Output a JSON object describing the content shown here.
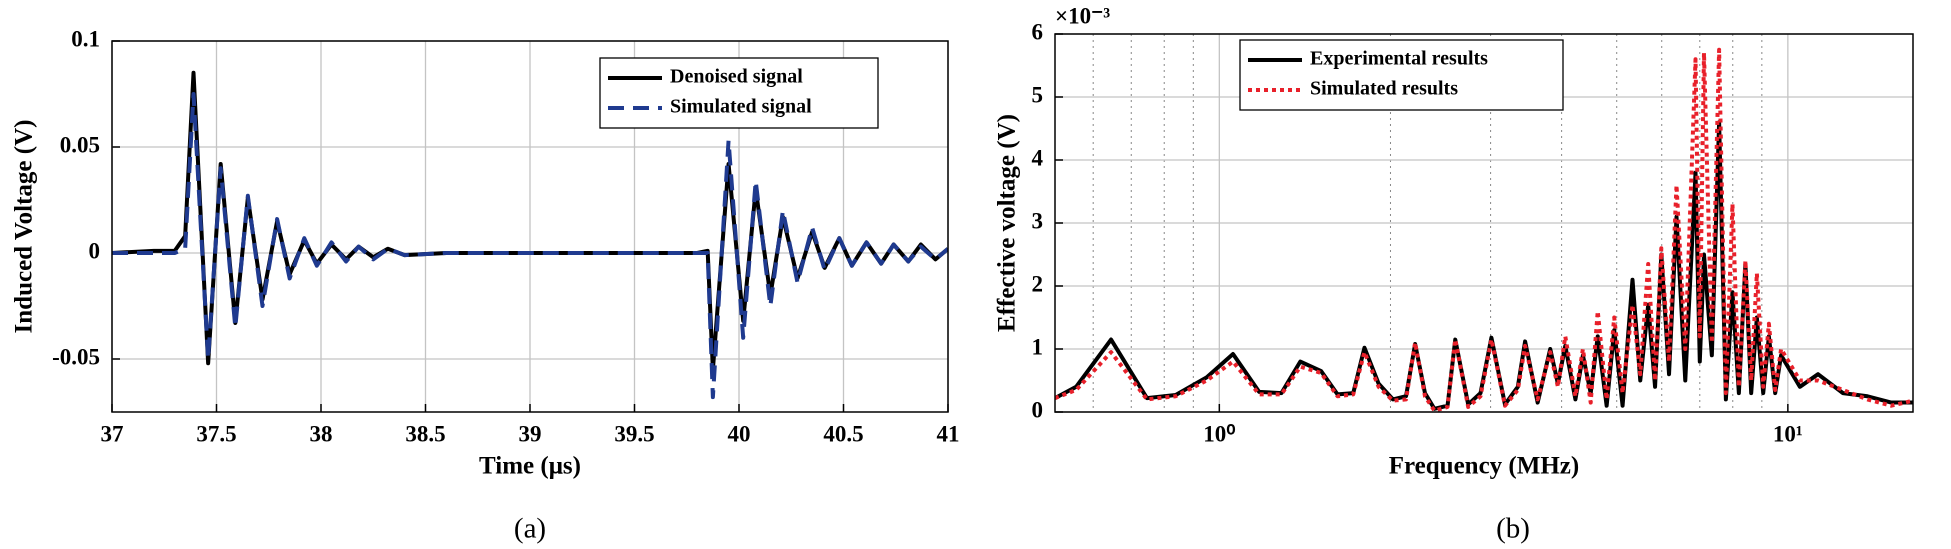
{
  "chart_data": [
    {
      "type": "line",
      "xlabel": "Time (μs)",
      "ylabel": "Induced Voltage (V)",
      "caption": "(a)",
      "xlim": [
        37,
        41
      ],
      "xticks": [
        37,
        37.5,
        38,
        38.5,
        39,
        39.5,
        40,
        40.5,
        41
      ],
      "ylim": [
        -0.075,
        0.1
      ],
      "yticks": [
        -0.05,
        0,
        0.05,
        0.1
      ],
      "grid": true,
      "legend": "top-right",
      "x": [
        37,
        37.2,
        37.3,
        37.35,
        37.39,
        37.46,
        37.52,
        37.59,
        37.65,
        37.72,
        37.79,
        37.85,
        37.92,
        37.98,
        38.05,
        38.12,
        38.18,
        38.25,
        38.32,
        38.4,
        38.6,
        38.8,
        39.0,
        39.2,
        39.4,
        39.6,
        39.8,
        39.85,
        39.875,
        39.95,
        40.02,
        40.08,
        40.15,
        40.21,
        40.28,
        40.35,
        40.41,
        40.48,
        40.54,
        40.61,
        40.68,
        40.74,
        40.81,
        40.87,
        40.94,
        41.0
      ],
      "series": [
        {
          "name": "Denoised signal",
          "color": "#000000",
          "linestyle": "solid",
          "values": [
            0,
            0.001,
            0.001,
            0.008,
            0.085,
            -0.052,
            0.042,
            -0.033,
            0.026,
            -0.022,
            0.015,
            -0.01,
            0.006,
            -0.005,
            0.004,
            -0.003,
            0.003,
            -0.002,
            0.002,
            -0.001,
            0,
            0,
            0,
            0,
            0,
            0,
            0,
            0.001,
            -0.055,
            0.042,
            -0.032,
            0.03,
            -0.02,
            0.017,
            -0.012,
            0.01,
            -0.007,
            0.007,
            -0.006,
            0.005,
            -0.005,
            0.004,
            -0.004,
            0.004,
            -0.003,
            0.002
          ]
        },
        {
          "name": "Simulated signal",
          "color": "#1f3a8f",
          "linestyle": "dashed",
          "values": [
            0,
            0,
            0,
            0.002,
            0.075,
            -0.05,
            0.04,
            -0.035,
            0.027,
            -0.025,
            0.016,
            -0.012,
            0.007,
            -0.006,
            0.005,
            -0.004,
            0.003,
            -0.003,
            0.002,
            -0.001,
            0,
            0,
            0,
            0,
            0,
            0,
            0,
            0,
            -0.068,
            0.053,
            -0.04,
            0.034,
            -0.025,
            0.02,
            -0.014,
            0.012,
            -0.008,
            0.007,
            -0.006,
            0.005,
            -0.005,
            0.004,
            -0.004,
            0.003,
            -0.003,
            0.002
          ]
        }
      ]
    },
    {
      "type": "line",
      "xlabel": "Frequency (MHz)",
      "ylabel": "Effective voltage (V)",
      "caption": "(b)",
      "y_multiplier": "×10⁻³",
      "xscale": "log",
      "xlim": [
        0.514,
        16.6
      ],
      "xticks": [
        {
          "value": 1,
          "label": "10⁰"
        },
        {
          "value": 10,
          "label": "10¹"
        }
      ],
      "xminorticks": [
        0.6,
        0.7,
        0.8,
        0.9,
        2,
        3,
        4,
        5,
        6,
        7,
        8,
        9
      ],
      "ylim": [
        0,
        6
      ],
      "yticks": [
        0,
        1,
        2,
        3,
        4,
        5,
        6
      ],
      "grid": true,
      "legend": "top-left",
      "x": [
        0.514,
        0.56,
        0.645,
        0.746,
        0.838,
        0.95,
        1.057,
        1.175,
        1.286,
        1.388,
        1.51,
        1.614,
        1.72,
        1.8,
        1.906,
        2.02,
        2.13,
        2.21,
        2.3,
        2.39,
        2.52,
        2.6,
        2.74,
        2.88,
        3.01,
        3.18,
        3.35,
        3.45,
        3.63,
        3.82,
        3.94,
        4.06,
        4.23,
        4.36,
        4.5,
        4.63,
        4.8,
        4.95,
        5.12,
        5.33,
        5.5,
        5.68,
        5.84,
        5.99,
        6.18,
        6.37,
        6.6,
        6.88,
        7.0,
        7.12,
        7.35,
        7.57,
        7.78,
        7.99,
        8.2,
        8.42,
        8.62,
        8.82,
        9.05,
        9.26,
        9.5,
        9.73,
        10.5,
        11.3,
        12.5,
        13.8,
        15.2,
        16.6
      ],
      "series": [
        {
          "name": "Experimental results",
          "color": "#000000",
          "linestyle": "solid",
          "values": [
            0.22,
            0.4,
            1.15,
            0.22,
            0.27,
            0.55,
            0.92,
            0.32,
            0.3,
            0.8,
            0.65,
            0.28,
            0.3,
            1.02,
            0.45,
            0.2,
            0.25,
            1.08,
            0.3,
            0.05,
            0.1,
            1.15,
            0.12,
            0.3,
            1.18,
            0.12,
            0.4,
            1.12,
            0.15,
            1.0,
            0.45,
            1.05,
            0.2,
            0.9,
            0.3,
            1.2,
            0.1,
            1.3,
            0.1,
            2.1,
            0.5,
            1.7,
            0.4,
            2.5,
            0.6,
            3.1,
            0.5,
            3.8,
            0.8,
            2.5,
            0.9,
            4.6,
            0.2,
            1.9,
            0.3,
            2.35,
            0.3,
            1.5,
            0.3,
            1.2,
            0.3,
            0.9,
            0.4,
            0.6,
            0.3,
            0.25,
            0.15,
            0.15
          ]
        },
        {
          "name": "Simulated results",
          "color": "#e8202a",
          "linestyle": "dotted",
          "values": [
            0.22,
            0.35,
            0.95,
            0.2,
            0.25,
            0.5,
            0.8,
            0.28,
            0.28,
            0.72,
            0.62,
            0.25,
            0.28,
            0.95,
            0.4,
            0.18,
            0.2,
            1.1,
            0.25,
            0.02,
            0.08,
            1.15,
            0.08,
            0.25,
            1.15,
            0.1,
            0.35,
            1.05,
            0.2,
            0.95,
            0.4,
            1.2,
            0.25,
            1.0,
            0.15,
            1.6,
            0.2,
            1.5,
            0.3,
            1.7,
            0.6,
            2.35,
            0.5,
            2.6,
            0.8,
            3.6,
            1.0,
            5.6,
            1.2,
            5.7,
            1.1,
            5.75,
            0.3,
            3.3,
            0.4,
            2.4,
            0.5,
            2.2,
            0.4,
            1.4,
            0.35,
            1.0,
            0.5,
            0.5,
            0.35,
            0.2,
            0.1,
            0.18
          ]
        }
      ]
    }
  ]
}
